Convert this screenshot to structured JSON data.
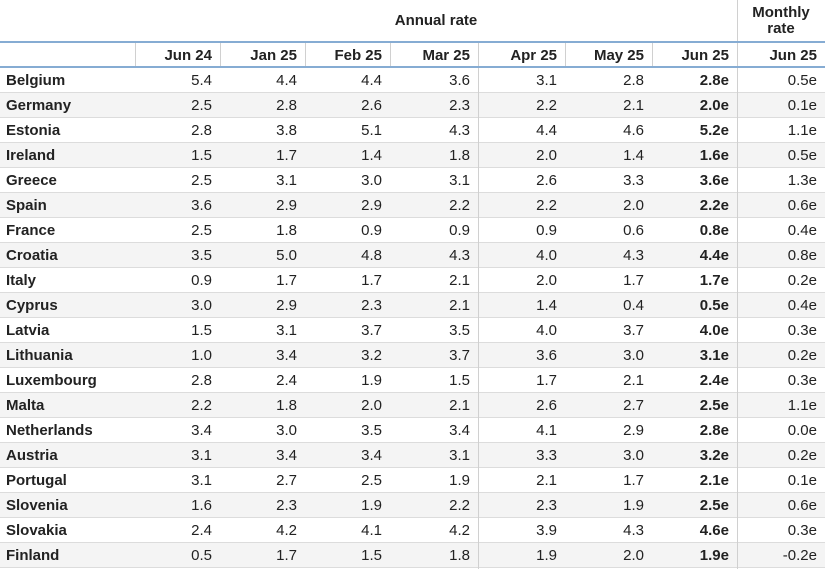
{
  "table": {
    "header_groups": [
      "Annual rate",
      "Monthly rate"
    ],
    "columns": [
      "Jun 24",
      "Jan 25",
      "Feb 25",
      "Mar 25",
      "Apr 25",
      "May 25",
      "Jun 25",
      "Jun 25"
    ],
    "rows": [
      [
        "Belgium",
        "5.4",
        "4.4",
        "4.4",
        "3.6",
        "3.1",
        "2.8",
        "2.8e",
        "0.5e"
      ],
      [
        "Germany",
        "2.5",
        "2.8",
        "2.6",
        "2.3",
        "2.2",
        "2.1",
        "2.0e",
        "0.1e"
      ],
      [
        "Estonia",
        "2.8",
        "3.8",
        "5.1",
        "4.3",
        "4.4",
        "4.6",
        "5.2e",
        "1.1e"
      ],
      [
        "Ireland",
        "1.5",
        "1.7",
        "1.4",
        "1.8",
        "2.0",
        "1.4",
        "1.6e",
        "0.5e"
      ],
      [
        "Greece",
        "2.5",
        "3.1",
        "3.0",
        "3.1",
        "2.6",
        "3.3",
        "3.6e",
        "1.3e"
      ],
      [
        "Spain",
        "3.6",
        "2.9",
        "2.9",
        "2.2",
        "2.2",
        "2.0",
        "2.2e",
        "0.6e"
      ],
      [
        "France",
        "2.5",
        "1.8",
        "0.9",
        "0.9",
        "0.9",
        "0.6",
        "0.8e",
        "0.4e"
      ],
      [
        "Croatia",
        "3.5",
        "5.0",
        "4.8",
        "4.3",
        "4.0",
        "4.3",
        "4.4e",
        "0.8e"
      ],
      [
        "Italy",
        "0.9",
        "1.7",
        "1.7",
        "2.1",
        "2.0",
        "1.7",
        "1.7e",
        "0.2e"
      ],
      [
        "Cyprus",
        "3.0",
        "2.9",
        "2.3",
        "2.1",
        "1.4",
        "0.4",
        "0.5e",
        "0.4e"
      ],
      [
        "Latvia",
        "1.5",
        "3.1",
        "3.7",
        "3.5",
        "4.0",
        "3.7",
        "4.0e",
        "0.3e"
      ],
      [
        "Lithuania",
        "1.0",
        "3.4",
        "3.2",
        "3.7",
        "3.6",
        "3.0",
        "3.1e",
        "0.2e"
      ],
      [
        "Luxembourg",
        "2.8",
        "2.4",
        "1.9",
        "1.5",
        "1.7",
        "2.1",
        "2.4e",
        "0.3e"
      ],
      [
        "Malta",
        "2.2",
        "1.8",
        "2.0",
        "2.1",
        "2.6",
        "2.7",
        "2.5e",
        "1.1e"
      ],
      [
        "Netherlands",
        "3.4",
        "3.0",
        "3.5",
        "3.4",
        "4.1",
        "2.9",
        "2.8e",
        "0.0e"
      ],
      [
        "Austria",
        "3.1",
        "3.4",
        "3.4",
        "3.1",
        "3.3",
        "3.0",
        "3.2e",
        "0.2e"
      ],
      [
        "Portugal",
        "3.1",
        "2.7",
        "2.5",
        "1.9",
        "2.1",
        "1.7",
        "2.1e",
        "0.1e"
      ],
      [
        "Slovenia",
        "1.6",
        "2.3",
        "1.9",
        "2.2",
        "2.3",
        "1.9",
        "2.5e",
        "0.6e"
      ],
      [
        "Slovakia",
        "2.4",
        "4.2",
        "4.1",
        "4.2",
        "3.9",
        "4.3",
        "4.6e",
        "0.3e"
      ],
      [
        "Finland",
        "0.5",
        "1.7",
        "1.5",
        "1.8",
        "1.9",
        "2.0",
        "1.9e",
        "-0.2e"
      ]
    ]
  }
}
